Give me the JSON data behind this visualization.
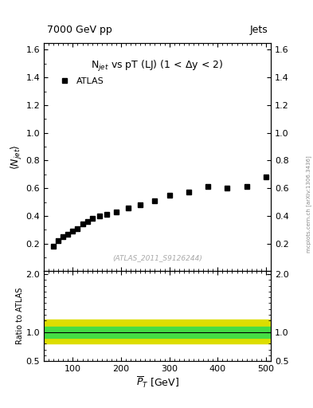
{
  "title_left": "7000 GeV pp",
  "title_right": "Jets",
  "plot_title": "N$_{jet}$ vs pT (LJ) (1 < Δy < 2)",
  "atlas_label": "ATLAS",
  "watermark": "(ATLAS_2011_S9126244)",
  "arxiv_label": "mcplots.cern.ch [arXiv:1306.3436]",
  "ylabel_main": "$\\langle N_{jet}\\rangle$",
  "ylabel_ratio": "Ratio to ATLAS",
  "xlabel": "$\\overline{P}_T$ [GeV]",
  "xlim": [
    40,
    510
  ],
  "ylim_main": [
    0.0,
    1.65
  ],
  "ylim_ratio": [
    0.5,
    2.05
  ],
  "data_x": [
    60,
    70,
    80,
    90,
    100,
    110,
    120,
    130,
    140,
    155,
    170,
    190,
    215,
    240,
    270,
    300,
    340,
    380,
    420,
    460,
    500
  ],
  "data_y": [
    0.18,
    0.22,
    0.25,
    0.27,
    0.29,
    0.31,
    0.34,
    0.36,
    0.38,
    0.4,
    0.41,
    0.43,
    0.46,
    0.48,
    0.51,
    0.55,
    0.57,
    0.61,
    0.6,
    0.61,
    0.68
  ],
  "ratio_line_y": 1.0,
  "green_band_upper": 1.1,
  "green_band_lower": 0.9,
  "yellow_band_upper": 1.22,
  "yellow_band_lower": 0.8,
  "marker_color": "#000000",
  "marker_style": "s",
  "marker_size": 4,
  "green_color": "#44dd44",
  "yellow_color": "#dddd00",
  "background_color": "#ffffff",
  "tick_label_size": 8,
  "axis_label_size": 9,
  "title_size": 9,
  "ratio_yticks": [
    0.5,
    1.0,
    2.0
  ],
  "main_yticks": [
    0.2,
    0.4,
    0.6,
    0.8,
    1.0,
    1.2,
    1.4,
    1.6
  ],
  "xticks": [
    100,
    200,
    300,
    400,
    500
  ]
}
